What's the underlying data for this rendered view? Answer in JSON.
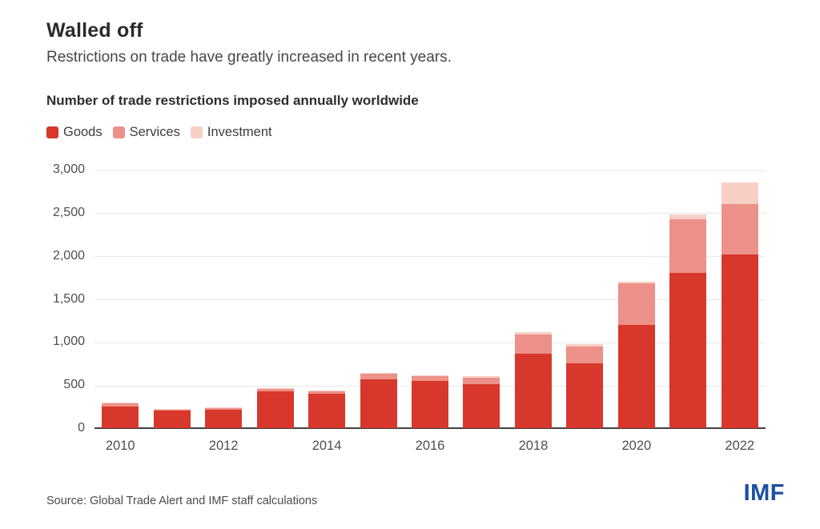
{
  "header": {
    "title": "Walled off",
    "subtitle": "Restrictions on trade have greatly increased in recent years."
  },
  "chart": {
    "heading": "Number of trade restrictions imposed annually worldwide"
  },
  "chart_data": {
    "type": "bar",
    "stacked": true,
    "title": "Number of trade restrictions imposed annually worldwide",
    "categories": [
      "2010",
      "2011",
      "2012",
      "2013",
      "2014",
      "2015",
      "2016",
      "2017",
      "2018",
      "2019",
      "2020",
      "2021",
      "2022"
    ],
    "series": [
      {
        "name": "Goods",
        "color": "#d7382b",
        "values": [
          255,
          205,
          215,
          430,
          395,
          570,
          550,
          515,
          865,
          750,
          1200,
          1800,
          2020
        ]
      },
      {
        "name": "Services",
        "color": "#ec9189",
        "values": [
          30,
          15,
          18,
          28,
          30,
          60,
          55,
          72,
          220,
          195,
          485,
          625,
          580
        ]
      },
      {
        "name": "Investment",
        "color": "#f8cfc5",
        "values": [
          8,
          5,
          5,
          7,
          8,
          13,
          12,
          13,
          30,
          30,
          18,
          55,
          250
        ]
      }
    ],
    "ylim": [
      0,
      3000
    ],
    "yticks": [
      0,
      500,
      1000,
      1500,
      2000,
      2500,
      3000
    ],
    "ytick_labels": [
      "0",
      "500",
      "1,000",
      "1,500",
      "2,000",
      "2,500",
      "3,000"
    ],
    "xtick_labels": [
      "2010",
      "2012",
      "2014",
      "2016",
      "2018",
      "2020",
      "2022"
    ],
    "grid": true,
    "legend_position": "top-left",
    "colors": {
      "gridline": "#e8e8e6",
      "axis": "#414141",
      "tick_text": "#4e4e4e"
    }
  },
  "footer": {
    "source": "Source: Global Trade Alert and IMF staff calculations",
    "logo": "IMF",
    "logo_color": "#1b4f9f"
  }
}
